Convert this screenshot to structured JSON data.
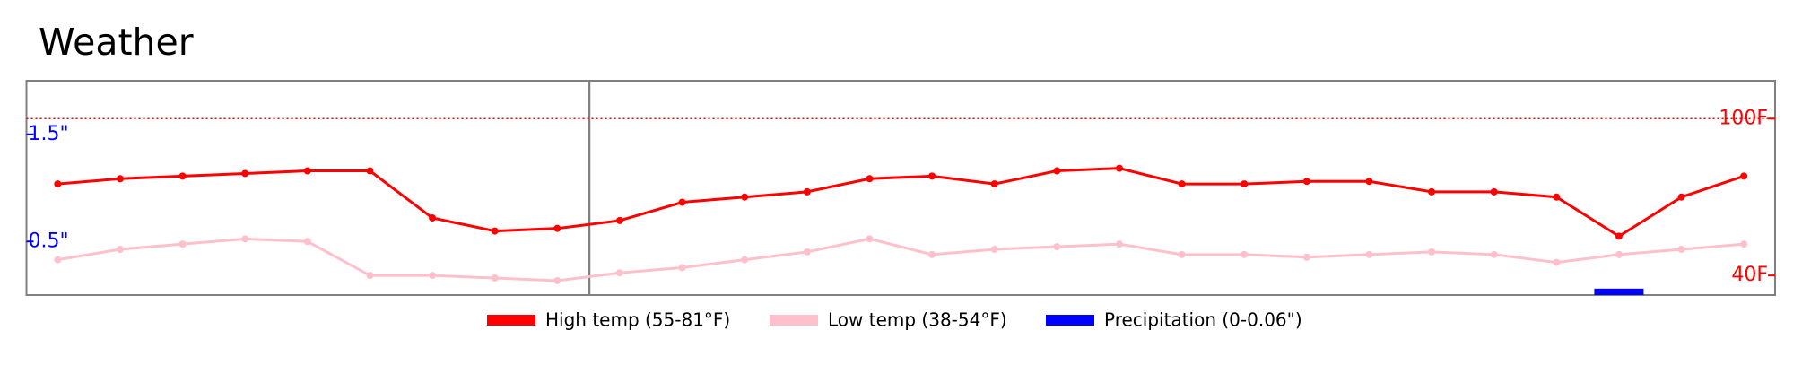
{
  "chart_data": {
    "type": "line",
    "title": "Weather",
    "categories": [
      null,
      null,
      null,
      null,
      null,
      null,
      null,
      null,
      null,
      null,
      null,
      null,
      null,
      null,
      null,
      null,
      null,
      null,
      null,
      null,
      null,
      null,
      null,
      null,
      null,
      null,
      null,
      null
    ],
    "series": [
      {
        "name": "High temp (55-81°F)",
        "color": "#ff0000",
        "axis": "y2",
        "values": [
          75,
          77,
          78,
          79,
          80,
          80,
          62,
          57,
          58,
          61,
          68,
          70,
          72,
          77,
          78,
          75,
          80,
          81,
          75,
          75,
          76,
          76,
          72,
          72,
          70,
          55,
          70,
          78
        ]
      },
      {
        "name": "Low temp (38-54°F)",
        "color": "#ffc0cb",
        "axis": "y2",
        "values": [
          46,
          50,
          52,
          54,
          53,
          40,
          40,
          39,
          38,
          41,
          43,
          46,
          49,
          54,
          48,
          50,
          51,
          52,
          48,
          48,
          47,
          48,
          49,
          48,
          45,
          48,
          50,
          52
        ]
      },
      {
        "name": "Precipitation (0-0.06\")",
        "color": "#0000ff",
        "type": "bar",
        "values": [
          0,
          0,
          0,
          0,
          0,
          0,
          0,
          0,
          0,
          0,
          0,
          0,
          0,
          0,
          0,
          0,
          0,
          0,
          0,
          0,
          0,
          0,
          0,
          0,
          0,
          0.06,
          0,
          0
        ]
      }
    ],
    "ylim": [
      0,
      2
    ],
    "yticks": [
      {
        "value": 0.5,
        "label": "0.5\""
      },
      {
        "value": 1.5,
        "label": "1.5\""
      }
    ],
    "y2lim": [
      32.5,
      114.5
    ],
    "y2ticks": [
      {
        "value": 40,
        "label": "40F"
      },
      {
        "value": 100,
        "label": "100F"
      }
    ]
  }
}
